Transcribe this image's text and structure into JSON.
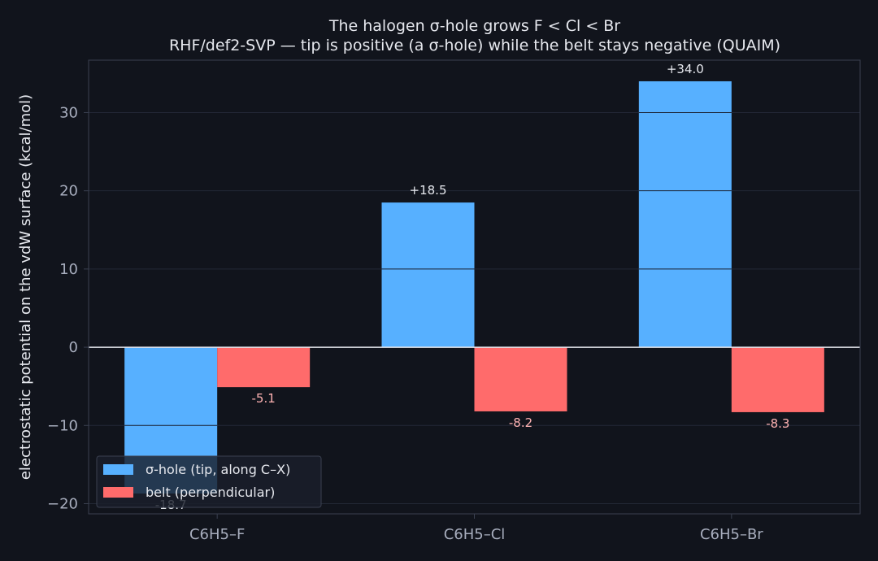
{
  "chart_data": {
    "type": "bar",
    "title": "The halogen σ-hole grows F < Cl < Br",
    "subtitle": "RHF/def2-SVP — tip is positive (a σ-hole) while the belt stays negative (QUAIM)",
    "xlabel": "",
    "ylabel": "electrostatic potential on the vdW surface (kcal/mol)",
    "categories": [
      "C6H5–F",
      "C6H5–Cl",
      "C6H5–Br"
    ],
    "series": [
      {
        "name": "σ-hole (tip, along C–X)",
        "values": [
          -18.7,
          18.5,
          34.0
        ],
        "labels": [
          "-18.7",
          "+18.5",
          "+34.0"
        ],
        "color": "#57b0ff",
        "label_color": "#e6e8ee"
      },
      {
        "name": "belt (perpendicular)",
        "values": [
          -5.1,
          -8.2,
          -8.3
        ],
        "labels": [
          "-5.1",
          "-8.2",
          "-8.3"
        ],
        "color": "#ff6b6b",
        "label_color": "#ffb3b3"
      }
    ],
    "ylim": [
      -21.3,
      36.7
    ],
    "yticks": [
      -20,
      -10,
      0,
      10,
      20,
      30
    ],
    "ytick_labels": [
      "−20",
      "−10",
      "0",
      "10",
      "20",
      "30"
    ],
    "grid": true,
    "legend_position": "lower-left",
    "colors": {
      "background": "#11141c",
      "plot_background": "#11141c",
      "grid": "#232836",
      "zero_line": "#e6e8ee",
      "spine": "#3a4050",
      "bar_gridline": "#1a2030"
    }
  }
}
